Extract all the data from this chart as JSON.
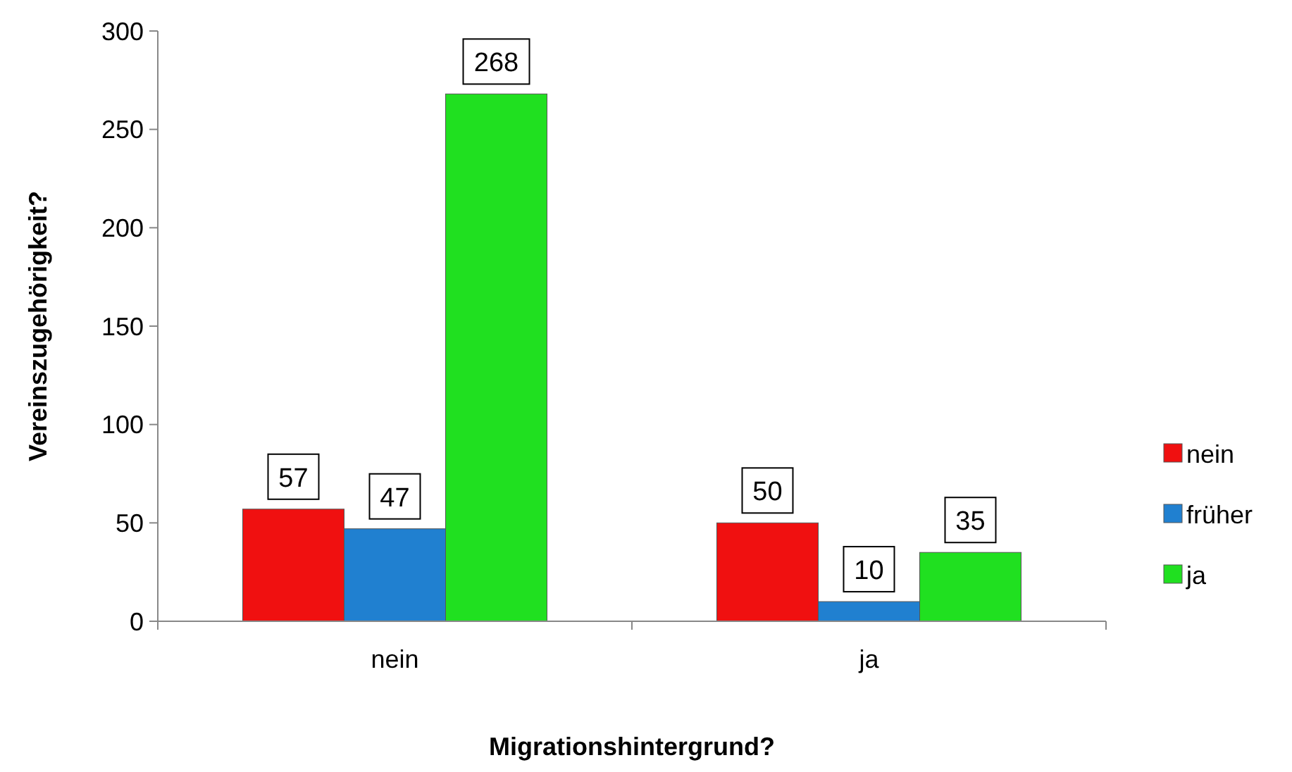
{
  "chart_data": {
    "type": "bar",
    "xlabel": "Migrationshintergrund?",
    "ylabel": "Vereinszugehörigkeit?",
    "categories": [
      "nein",
      "ja"
    ],
    "series": [
      {
        "name": "nein",
        "color": "#f01010",
        "values": [
          57,
          50
        ]
      },
      {
        "name": "früher",
        "color": "#2080d0",
        "values": [
          47,
          10
        ]
      },
      {
        "name": "ja",
        "color": "#20e020",
        "values": [
          268,
          35
        ]
      }
    ],
    "ylim": [
      0,
      300
    ],
    "yticks": [
      0,
      50,
      100,
      150,
      200,
      250,
      300
    ],
    "grid": false,
    "legend": "right",
    "data_labels": true
  }
}
